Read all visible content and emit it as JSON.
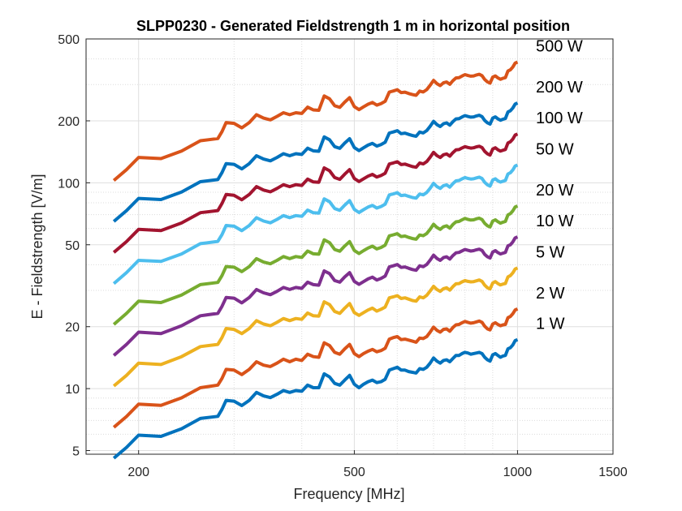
{
  "chart_data": {
    "type": "line",
    "title": "SLPP0230 - Generated Fieldstrength 1 m in horizontal position",
    "xlabel": "Frequency [MHz]",
    "ylabel": "E - Fieldstrength [V/m]",
    "xscale": "log",
    "yscale": "log",
    "xlim": [
      160,
      1500
    ],
    "ylim": [
      4.8,
      500
    ],
    "grid": true,
    "xticks": [
      200,
      500,
      1000,
      1500
    ],
    "xtick_labels": [
      "200",
      "500",
      "1000",
      "1500"
    ],
    "yticks": [
      5,
      10,
      20,
      50,
      100,
      200,
      500
    ],
    "ytick_labels": [
      "5",
      "10",
      "20",
      "50",
      "100",
      "200",
      "500"
    ],
    "x": [
      180,
      190,
      200,
      220,
      240,
      260,
      280,
      285,
      290,
      300,
      310,
      320,
      330,
      340,
      350,
      360,
      370,
      380,
      390,
      400,
      410,
      420,
      430,
      440,
      450,
      460,
      470,
      480,
      490,
      500,
      510,
      520,
      530,
      540,
      550,
      560,
      570,
      580,
      590,
      600,
      610,
      620,
      630,
      640,
      650,
      660,
      670,
      680,
      690,
      700,
      710,
      720,
      730,
      740,
      750,
      760,
      770,
      780,
      790,
      800,
      810,
      820,
      830,
      840,
      850,
      860,
      870,
      880,
      890,
      900,
      910,
      920,
      930,
      940,
      950,
      960,
      970,
      980,
      990,
      1000
    ],
    "series": [
      {
        "name": "500 W",
        "color": "#D95319",
        "label": "500 W",
        "values": [
          102.6,
          115.8,
          132.8,
          131.1,
          142.7,
          160.1,
          164.0,
          177.2,
          196.1,
          194.4,
          184.9,
          196.1,
          214.2,
          206.2,
          202.1,
          210.1,
          219.0,
          214.2,
          219.0,
          217.1,
          233.0,
          226.0,
          225.0,
          264.1,
          255.9,
          237.0,
          232.4,
          246.5,
          259.1,
          234.5,
          226.7,
          233.9,
          240.9,
          245.8,
          238.5,
          242.6,
          248.8,
          275.9,
          279.3,
          283.2,
          274.1,
          275.6,
          271.6,
          268.2,
          266.2,
          279.0,
          276.3,
          283.5,
          297.7,
          314.4,
          303.3,
          296.8,
          306.0,
          308.9,
          301.2,
          313.3,
          323.2,
          324.3,
          330.3,
          335.3,
          332.1,
          329.6,
          330.6,
          334.3,
          336.6,
          331.6,
          317.7,
          309.0,
          304.8,
          326.2,
          330.6,
          323.5,
          318.6,
          321.9,
          324.4,
          349.1,
          353.9,
          364.8,
          381.5,
          386.2
        ]
      },
      {
        "name": "200 W",
        "color": "#0072BD",
        "label": "200 W",
        "values": [
          64.9,
          73.2,
          84.0,
          82.9,
          90.2,
          101.2,
          103.7,
          112.1,
          124.0,
          122.9,
          116.9,
          124.0,
          135.4,
          130.4,
          127.8,
          132.8,
          138.5,
          135.4,
          138.5,
          137.3,
          147.3,
          142.9,
          142.3,
          167.0,
          161.8,
          149.9,
          147.0,
          155.9,
          163.8,
          148.3,
          143.3,
          147.9,
          152.4,
          155.4,
          150.8,
          153.4,
          157.4,
          174.5,
          176.6,
          179.1,
          173.3,
          174.3,
          171.8,
          169.6,
          168.3,
          176.4,
          174.7,
          179.3,
          188.2,
          198.8,
          191.8,
          187.7,
          193.5,
          195.4,
          190.5,
          198.1,
          204.4,
          205.1,
          208.9,
          212.1,
          210.0,
          208.5,
          209.1,
          211.4,
          212.9,
          209.7,
          200.9,
          195.4,
          192.8,
          206.3,
          209.1,
          204.6,
          201.5,
          203.6,
          205.2,
          220.8,
          223.8,
          230.7,
          241.3,
          244.3
        ]
      },
      {
        "name": "100 W",
        "color": "#A2142F",
        "label": "100 W",
        "values": [
          45.9,
          51.8,
          59.4,
          58.6,
          63.8,
          71.6,
          73.3,
          79.3,
          87.7,
          86.9,
          82.7,
          87.7,
          95.8,
          92.2,
          90.4,
          93.9,
          97.9,
          95.8,
          97.9,
          97.1,
          104.2,
          101.0,
          100.6,
          118.1,
          114.4,
          106.0,
          103.9,
          110.2,
          115.9,
          104.9,
          101.4,
          104.6,
          107.7,
          109.9,
          106.6,
          108.5,
          111.3,
          123.4,
          124.9,
          126.6,
          122.6,
          123.3,
          121.5,
          119.9,
          119.0,
          124.7,
          123.5,
          126.8,
          133.1,
          140.6,
          135.6,
          132.7,
          136.8,
          138.1,
          134.7,
          140.1,
          144.5,
          145.0,
          147.7,
          149.9,
          148.5,
          147.4,
          147.9,
          149.5,
          150.5,
          148.3,
          142.1,
          138.2,
          136.3,
          145.9,
          147.9,
          144.7,
          142.5,
          144.0,
          145.1,
          156.1,
          158.2,
          163.1,
          170.6,
          172.7
        ]
      },
      {
        "name": "50 W",
        "color": "#4DBEEE",
        "label": "50 W",
        "values": [
          32.4,
          36.6,
          42.0,
          41.5,
          45.1,
          50.6,
          51.9,
          56.0,
          62.0,
          61.5,
          58.5,
          62.0,
          67.7,
          65.2,
          63.9,
          66.4,
          69.3,
          67.7,
          69.3,
          68.7,
          73.7,
          71.5,
          71.2,
          83.5,
          80.9,
          75.0,
          73.5,
          77.9,
          81.9,
          74.2,
          71.7,
          74.0,
          76.2,
          77.7,
          75.4,
          76.7,
          78.7,
          87.3,
          88.3,
          89.6,
          86.7,
          87.2,
          85.9,
          84.8,
          84.2,
          88.2,
          87.4,
          89.7,
          94.1,
          99.4,
          95.9,
          93.9,
          96.8,
          97.7,
          95.3,
          99.1,
          102.2,
          102.6,
          104.5,
          106.0,
          105.0,
          104.3,
          104.6,
          105.7,
          106.5,
          104.9,
          100.5,
          97.7,
          96.4,
          103.2,
          104.6,
          102.3,
          100.8,
          101.8,
          102.6,
          110.4,
          111.9,
          115.4,
          120.6,
          122.1
        ]
      },
      {
        "name": "20 W",
        "color": "#77AC30",
        "label": "20 W",
        "values": [
          20.5,
          23.2,
          26.6,
          26.2,
          28.5,
          32.0,
          32.8,
          35.4,
          39.2,
          38.9,
          37.0,
          39.2,
          42.8,
          41.2,
          40.4,
          42.0,
          43.8,
          42.8,
          43.8,
          43.4,
          46.6,
          45.2,
          45.0,
          52.8,
          51.2,
          47.4,
          46.5,
          49.3,
          51.8,
          46.9,
          45.3,
          46.8,
          48.2,
          49.2,
          47.7,
          48.5,
          49.8,
          55.2,
          55.9,
          56.6,
          54.8,
          55.1,
          54.3,
          53.6,
          53.2,
          55.8,
          55.3,
          56.7,
          59.5,
          62.9,
          60.7,
          59.4,
          61.2,
          61.8,
          60.2,
          62.7,
          64.6,
          64.9,
          66.1,
          67.1,
          66.4,
          65.9,
          66.1,
          66.9,
          67.3,
          66.3,
          63.5,
          61.8,
          61.0,
          65.2,
          66.1,
          64.7,
          63.7,
          64.4,
          64.9,
          69.8,
          70.8,
          73.0,
          76.3,
          77.2
        ]
      },
      {
        "name": "10 W",
        "color": "#7E2F8E",
        "label": "10 W",
        "values": [
          14.5,
          16.4,
          18.8,
          18.5,
          20.2,
          22.6,
          23.2,
          25.1,
          27.7,
          27.5,
          26.1,
          27.7,
          30.3,
          29.2,
          28.6,
          29.7,
          31.0,
          30.3,
          31.0,
          30.7,
          32.9,
          32.0,
          31.8,
          37.3,
          36.2,
          33.5,
          32.9,
          34.9,
          36.6,
          33.2,
          32.1,
          33.1,
          34.1,
          34.8,
          33.7,
          34.3,
          35.2,
          39.0,
          39.5,
          40.1,
          38.8,
          39.0,
          38.4,
          37.9,
          37.6,
          39.5,
          39.1,
          40.1,
          42.1,
          44.5,
          42.9,
          42.0,
          43.3,
          43.7,
          42.6,
          44.3,
          45.7,
          45.9,
          46.7,
          47.4,
          47.0,
          46.6,
          46.8,
          47.3,
          47.6,
          46.9,
          44.9,
          43.7,
          43.1,
          46.1,
          46.8,
          45.8,
          45.1,
          45.5,
          45.9,
          49.4,
          50.0,
          51.6,
          54.0,
          54.6
        ]
      },
      {
        "name": "5 W",
        "color": "#EDB120",
        "label": "5 W",
        "values": [
          10.3,
          11.6,
          13.3,
          13.1,
          14.3,
          16.0,
          16.4,
          17.7,
          19.6,
          19.4,
          18.5,
          19.6,
          21.4,
          20.6,
          20.2,
          21.0,
          21.9,
          21.4,
          21.9,
          21.7,
          23.3,
          22.6,
          22.5,
          26.4,
          25.6,
          23.7,
          23.2,
          24.6,
          25.9,
          23.4,
          22.7,
          23.4,
          24.1,
          24.6,
          23.8,
          24.3,
          24.9,
          27.6,
          27.9,
          28.3,
          27.4,
          27.6,
          27.2,
          26.8,
          26.6,
          27.9,
          27.6,
          28.4,
          29.8,
          31.4,
          30.3,
          29.7,
          30.6,
          30.9,
          30.1,
          31.3,
          32.3,
          32.4,
          33.0,
          33.5,
          33.2,
          33.0,
          33.1,
          33.4,
          33.7,
          33.2,
          31.8,
          30.9,
          30.5,
          32.6,
          33.1,
          32.4,
          31.9,
          32.2,
          32.4,
          34.9,
          35.4,
          36.5,
          38.1,
          38.6
        ]
      },
      {
        "name": "2 W",
        "color": "#D95319",
        "label": "2 W",
        "values": [
          6.49,
          7.32,
          8.4,
          8.29,
          9.02,
          10.1,
          10.4,
          11.2,
          12.4,
          12.3,
          11.7,
          12.4,
          13.5,
          13.0,
          12.8,
          13.3,
          13.9,
          13.5,
          13.9,
          13.7,
          14.7,
          14.3,
          14.2,
          16.7,
          16.2,
          15.0,
          14.7,
          15.6,
          16.4,
          14.8,
          14.3,
          14.8,
          15.2,
          15.5,
          15.1,
          15.3,
          15.7,
          17.4,
          17.7,
          17.9,
          17.3,
          17.4,
          17.2,
          17.0,
          16.8,
          17.6,
          17.5,
          17.9,
          18.8,
          19.9,
          19.2,
          18.8,
          19.4,
          19.5,
          19.0,
          19.8,
          20.4,
          20.5,
          20.9,
          21.2,
          21.0,
          20.8,
          20.9,
          21.1,
          21.3,
          21.0,
          20.1,
          19.5,
          19.3,
          20.6,
          20.9,
          20.5,
          20.2,
          20.4,
          20.5,
          22.1,
          22.4,
          23.1,
          24.1,
          24.4
        ]
      },
      {
        "name": "1 W",
        "color": "#0072BD",
        "label": "1 W",
        "values": [
          4.59,
          5.18,
          5.94,
          5.86,
          6.38,
          7.16,
          7.33,
          7.93,
          8.77,
          8.69,
          8.27,
          8.77,
          9.58,
          9.22,
          9.04,
          9.39,
          9.79,
          9.58,
          9.79,
          9.71,
          10.4,
          10.1,
          10.1,
          11.8,
          11.4,
          10.6,
          10.4,
          11.0,
          11.6,
          10.5,
          10.1,
          10.5,
          10.8,
          11.0,
          10.7,
          10.8,
          11.1,
          12.3,
          12.5,
          12.7,
          12.3,
          12.3,
          12.1,
          12.0,
          11.9,
          12.5,
          12.4,
          12.7,
          13.3,
          14.1,
          13.6,
          13.3,
          13.7,
          13.8,
          13.5,
          14.0,
          14.5,
          14.5,
          14.8,
          15.0,
          14.9,
          14.7,
          14.8,
          14.9,
          15.0,
          14.8,
          14.2,
          13.8,
          13.6,
          14.6,
          14.8,
          14.5,
          14.2,
          14.4,
          14.5,
          15.6,
          15.8,
          16.3,
          17.1,
          17.3
        ]
      }
    ]
  }
}
